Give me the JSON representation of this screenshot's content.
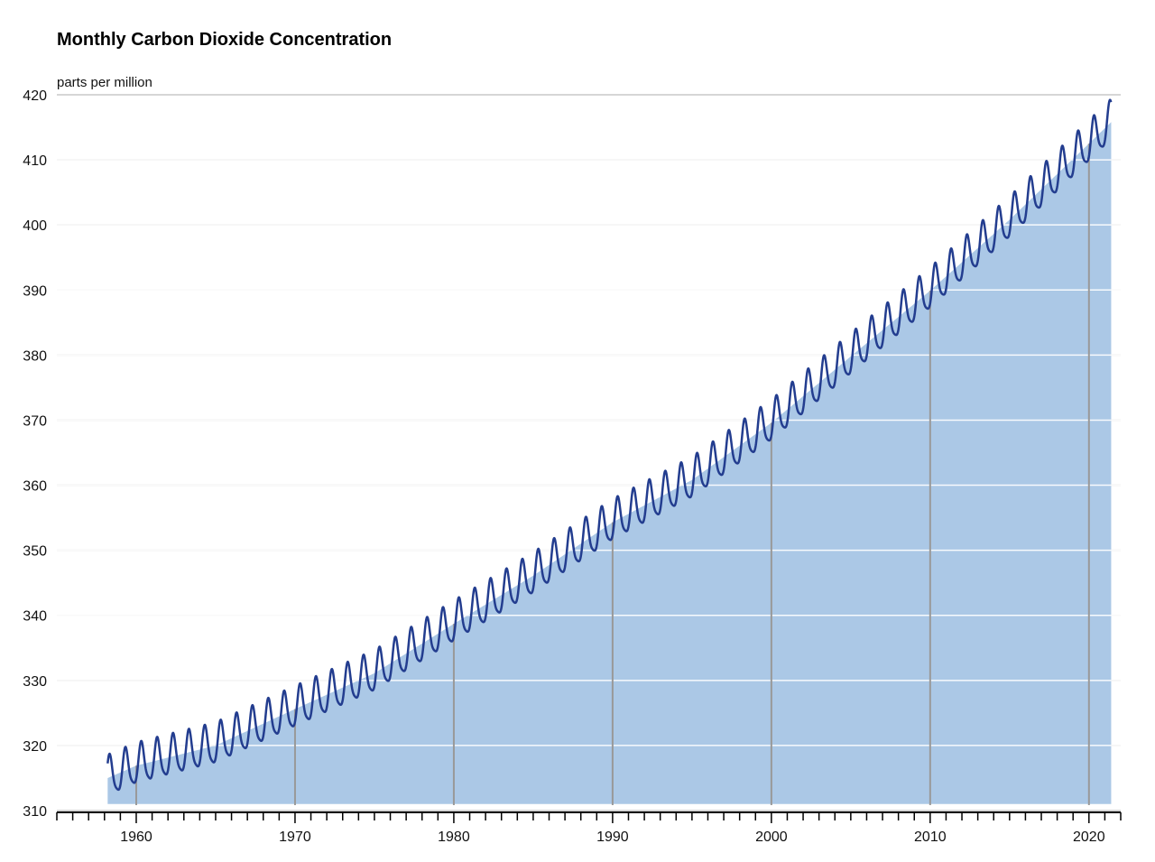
{
  "chart_data": {
    "type": "area",
    "title": "Monthly Carbon Dioxide Concentration",
    "ylabel": "parts per million",
    "xlabel": "",
    "xlim": [
      1955,
      2022
    ],
    "ylim": [
      310,
      420
    ],
    "yticks": [
      310,
      320,
      330,
      340,
      350,
      360,
      370,
      380,
      390,
      400,
      410,
      420
    ],
    "xticks": [
      1960,
      1970,
      1980,
      1990,
      2000,
      2010,
      2020
    ],
    "grid": true,
    "legend": "none",
    "colors": {
      "line": "#233d8f",
      "area": "#abc8e6",
      "grid": "#c8c8c8",
      "vline": "#999999"
    },
    "series": [
      {
        "role": "monthly",
        "start_year": 1958.2,
        "end_year": 2021.4,
        "seasonal_amplitude": 3.0,
        "trend_points": [
          [
            1958.2,
            315.0
          ],
          [
            1960,
            316.9
          ],
          [
            1965,
            320.0
          ],
          [
            1970,
            325.6
          ],
          [
            1975,
            331.1
          ],
          [
            1980,
            338.7
          ],
          [
            1985,
            346.1
          ],
          [
            1990,
            354.3
          ],
          [
            1995,
            360.8
          ],
          [
            2000,
            369.6
          ],
          [
            2005,
            379.8
          ],
          [
            2010,
            389.9
          ],
          [
            2015,
            400.8
          ],
          [
            2020,
            412.5
          ],
          [
            2021.4,
            415.8
          ]
        ]
      },
      {
        "role": "annual-area",
        "annual_points": [
          [
            1958.2,
            315.0
          ],
          [
            1960,
            316.9
          ],
          [
            1965,
            320.0
          ],
          [
            1970,
            325.6
          ],
          [
            1975,
            331.1
          ],
          [
            1980,
            338.7
          ],
          [
            1985,
            346.1
          ],
          [
            1990,
            354.3
          ],
          [
            1995,
            360.8
          ],
          [
            2000,
            369.6
          ],
          [
            2005,
            379.8
          ],
          [
            2010,
            389.9
          ],
          [
            2015,
            400.8
          ],
          [
            2020,
            412.5
          ],
          [
            2021.4,
            415.8
          ]
        ]
      }
    ]
  }
}
